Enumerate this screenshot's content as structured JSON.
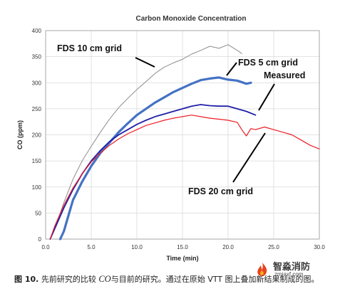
{
  "figure": {
    "caption_fig": "图 10.",
    "caption_pre": " 先前研究的比较 ",
    "caption_italic": "CO",
    "caption_post": "与目前的研究。通过在原始 VTT 图上叠加新结果制成的图。"
  },
  "watermark": {
    "name": "智淼消防",
    "url": "zmjaxf.com"
  },
  "chart_data": {
    "type": "line",
    "title": "Carbon Monoxide Concentration",
    "xlabel": "Time (min)",
    "ylabel": "CO (ppm)",
    "xlim": [
      0,
      30
    ],
    "ylim": [
      0,
      400
    ],
    "x_ticks": [
      "0.0",
      "5.0",
      "10.0",
      "15.0",
      "20.0",
      "25.0",
      "30.0"
    ],
    "y_ticks": [
      "0",
      "50",
      "100",
      "150",
      "200",
      "250",
      "300",
      "350",
      "400"
    ],
    "grid": true,
    "series": [
      {
        "name": "FDS 10 cm grid",
        "color": "#8c8c8c",
        "points": [
          [
            0.5,
            0
          ],
          [
            1,
            20
          ],
          [
            2,
            70
          ],
          [
            3,
            115
          ],
          [
            4,
            150
          ],
          [
            5,
            178
          ],
          [
            6,
            205
          ],
          [
            7,
            230
          ],
          [
            8,
            252
          ],
          [
            9,
            270
          ],
          [
            10,
            287
          ],
          [
            11,
            302
          ],
          [
            12,
            318
          ],
          [
            13,
            330
          ],
          [
            14,
            338
          ],
          [
            15,
            345
          ],
          [
            16,
            355
          ],
          [
            17,
            362
          ],
          [
            18,
            370
          ],
          [
            19,
            366
          ],
          [
            20,
            373
          ],
          [
            21,
            362
          ],
          [
            21.5,
            356
          ]
        ]
      },
      {
        "name": "FDS 5 cm grid",
        "color": "#4472c4",
        "points": [
          [
            1.6,
            0
          ],
          [
            2,
            15
          ],
          [
            2.5,
            45
          ],
          [
            3,
            75
          ],
          [
            4,
            110
          ],
          [
            5,
            140
          ],
          [
            6,
            165
          ],
          [
            7,
            185
          ],
          [
            8,
            205
          ],
          [
            9,
            222
          ],
          [
            10,
            238
          ],
          [
            11,
            250
          ],
          [
            12,
            262
          ],
          [
            13,
            272
          ],
          [
            14,
            282
          ],
          [
            15,
            290
          ],
          [
            16,
            298
          ],
          [
            17,
            305
          ],
          [
            18,
            308
          ],
          [
            19,
            310
          ],
          [
            20,
            306
          ],
          [
            21,
            304
          ],
          [
            22,
            298
          ],
          [
            22.5,
            300
          ]
        ]
      },
      {
        "name": "Measured",
        "color": "#1f1fa8",
        "points": [
          [
            0.5,
            0
          ],
          [
            1,
            20
          ],
          [
            2,
            60
          ],
          [
            3,
            95
          ],
          [
            4,
            125
          ],
          [
            5,
            150
          ],
          [
            6,
            170
          ],
          [
            7,
            187
          ],
          [
            8,
            200
          ],
          [
            9,
            210
          ],
          [
            10,
            220
          ],
          [
            11,
            228
          ],
          [
            12,
            235
          ],
          [
            13,
            240
          ],
          [
            14,
            245
          ],
          [
            15,
            250
          ],
          [
            16,
            255
          ],
          [
            17,
            258
          ],
          [
            18,
            256
          ],
          [
            19,
            255
          ],
          [
            20,
            255
          ],
          [
            21,
            250
          ],
          [
            22,
            245
          ],
          [
            23,
            238
          ]
        ]
      },
      {
        "name": "FDS 20 cm grid",
        "color": "#ee1c25",
        "points": [
          [
            0.5,
            0
          ],
          [
            1,
            25
          ],
          [
            2,
            65
          ],
          [
            3,
            98
          ],
          [
            4,
            125
          ],
          [
            5,
            148
          ],
          [
            6,
            165
          ],
          [
            7,
            180
          ],
          [
            8,
            192
          ],
          [
            9,
            202
          ],
          [
            10,
            210
          ],
          [
            11,
            218
          ],
          [
            12,
            223
          ],
          [
            13,
            228
          ],
          [
            14,
            232
          ],
          [
            15,
            235
          ],
          [
            16,
            238
          ],
          [
            17,
            235
          ],
          [
            18,
            232
          ],
          [
            19,
            230
          ],
          [
            20,
            228
          ],
          [
            21,
            224
          ],
          [
            21.5,
            210
          ],
          [
            22,
            198
          ],
          [
            22.5,
            212
          ],
          [
            23,
            210
          ],
          [
            24,
            215
          ],
          [
            25,
            210
          ],
          [
            26,
            205
          ],
          [
            27,
            200
          ],
          [
            28,
            190
          ],
          [
            29,
            180
          ],
          [
            30,
            173
          ]
        ]
      }
    ]
  }
}
